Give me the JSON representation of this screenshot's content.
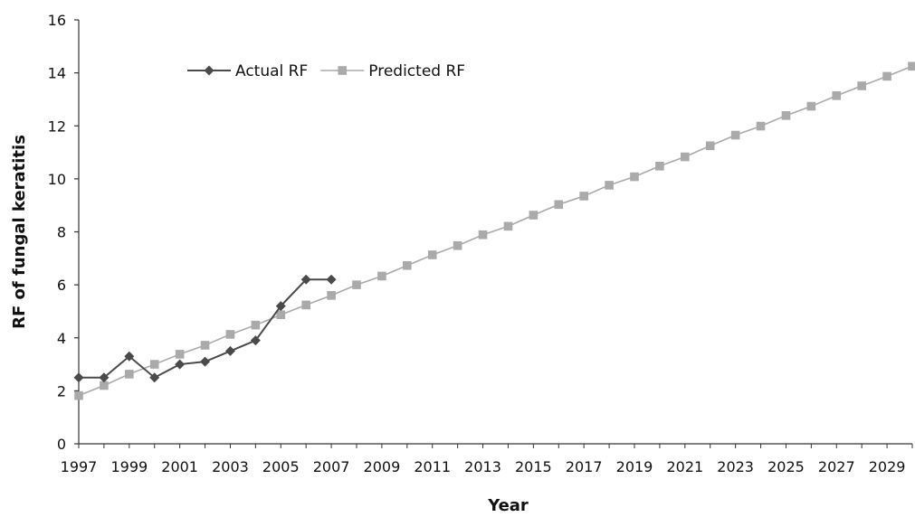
{
  "chart_data": {
    "type": "line",
    "title": "",
    "xlabel": "Year",
    "ylabel": "RF of fungal keratitis",
    "xlim": [
      1997,
      2030
    ],
    "ylim": [
      0,
      16
    ],
    "yticks": [
      0,
      2,
      4,
      6,
      8,
      10,
      12,
      14,
      16
    ],
    "xtick_labels": [
      1997,
      1999,
      2001,
      2003,
      2005,
      2007,
      2009,
      2011,
      2013,
      2015,
      2017,
      2019,
      2021,
      2023,
      2025,
      2027,
      2029
    ],
    "grid": false,
    "legend_position": "top-left",
    "series": [
      {
        "name": "Actual RF",
        "marker": "diamond",
        "color": "#4a4a4a",
        "x": [
          1997,
          1998,
          1999,
          2000,
          2001,
          2002,
          2003,
          2004,
          2005,
          2006,
          2007
        ],
        "y": [
          2.5,
          2.5,
          3.3,
          2.5,
          3.0,
          3.1,
          3.5,
          3.9,
          5.2,
          6.2,
          6.2
        ]
      },
      {
        "name": "Predicted RF",
        "marker": "square",
        "color": "#aaaaaa",
        "x": [
          1997,
          1998,
          1999,
          2000,
          2001,
          2002,
          2003,
          2004,
          2005,
          2006,
          2007,
          2008,
          2009,
          2010,
          2011,
          2012,
          2013,
          2014,
          2015,
          2016,
          2017,
          2018,
          2019,
          2020,
          2021,
          2022,
          2023,
          2024,
          2025,
          2026,
          2027,
          2028,
          2029,
          2030
        ],
        "y": [
          1.82,
          2.2,
          2.63,
          3.0,
          3.38,
          3.72,
          4.13,
          4.48,
          4.87,
          5.24,
          5.6,
          6.0,
          6.33,
          6.73,
          7.13,
          7.48,
          7.89,
          8.21,
          8.63,
          9.03,
          9.35,
          9.76,
          10.08,
          10.48,
          10.83,
          11.25,
          11.65,
          11.99,
          12.39,
          12.74,
          13.14,
          13.51,
          13.87,
          14.25
        ]
      }
    ]
  }
}
